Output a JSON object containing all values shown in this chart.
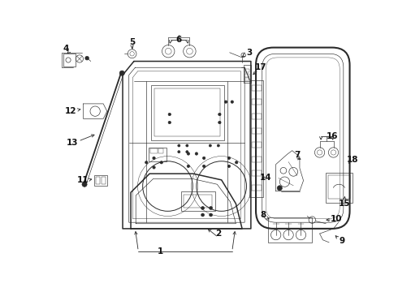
{
  "background_color": "#ffffff",
  "line_color": "#2a2a2a",
  "lw_main": 1.1,
  "lw_med": 0.7,
  "lw_thin": 0.45,
  "figsize": [
    4.9,
    3.6
  ],
  "dpi": 100
}
